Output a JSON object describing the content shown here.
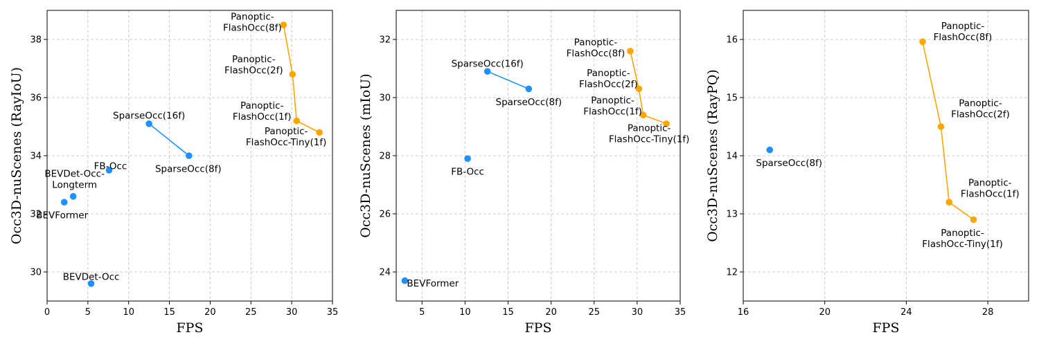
{
  "colors": {
    "blue": "#1e90ff",
    "orange": "#ffa500",
    "grid": "#cccccc"
  },
  "chart_data": [
    {
      "type": "scatter",
      "xlabel": "FPS",
      "ylabel": "Occ3D-nuScenes (RayIoU)",
      "xlim": [
        0,
        35
      ],
      "ylim": [
        29,
        39
      ],
      "xticks": [
        0,
        5,
        10,
        15,
        20,
        25,
        30,
        35
      ],
      "yticks": [
        30,
        32,
        34,
        36,
        38
      ],
      "grid": true,
      "points": [
        {
          "x": 5.4,
          "y": 29.6,
          "group": "blue",
          "label": [
            "BEVDet-Occ"
          ],
          "dx": 0,
          "dy": -10,
          "anchor": "middle"
        },
        {
          "x": 2.1,
          "y": 32.4,
          "group": "blue",
          "label": [
            "BEVFormer"
          ],
          "dx": -3,
          "dy": 19,
          "anchor": "middle"
        },
        {
          "x": 3.2,
          "y": 32.6,
          "group": "blue",
          "label": [
            "BEVDet-Occ-",
            "Longterm"
          ],
          "dx": 2,
          "dy": -25,
          "anchor": "middle"
        },
        {
          "x": 7.6,
          "y": 33.5,
          "group": "blue",
          "label": [
            "FB-Occ"
          ],
          "dx": 2,
          "dy": -6,
          "anchor": "middle"
        },
        {
          "x": 12.5,
          "y": 35.1,
          "group": "blue",
          "label": [
            "SparseOcc(16f)"
          ],
          "dx": 0,
          "dy": -12,
          "anchor": "middle"
        },
        {
          "x": 17.4,
          "y": 34.0,
          "group": "blue",
          "label": [
            "SparseOcc(8f)"
          ],
          "dx": -1,
          "dy": 19,
          "anchor": "middle"
        },
        {
          "x": 29.0,
          "y": 38.5,
          "group": "orange",
          "label": [
            "Panoptic-",
            "FlashOcc(8f)"
          ],
          "dx": -45,
          "dy": -4,
          "anchor": "middle"
        },
        {
          "x": 30.1,
          "y": 36.8,
          "group": "orange",
          "label": [
            "Panoptic-",
            "FlashOcc(2f)"
          ],
          "dx": -56,
          "dy": -14,
          "anchor": "middle"
        },
        {
          "x": 30.6,
          "y": 35.2,
          "group": "orange",
          "label": [
            "Panoptic-",
            "FlashOcc(1f)"
          ],
          "dx": -50,
          "dy": -14,
          "anchor": "middle"
        },
        {
          "x": 33.4,
          "y": 34.8,
          "group": "orange",
          "label": [
            "Panoptic-",
            "FlashOcc-Tiny(1f)"
          ],
          "dx": -48,
          "dy": 6,
          "anchor": "middle"
        }
      ],
      "lines": [
        {
          "group": "blue",
          "x": [
            12.5,
            17.4
          ],
          "y": [
            35.1,
            34.0
          ]
        },
        {
          "group": "orange",
          "x": [
            29.0,
            30.1,
            30.6,
            33.4
          ],
          "y": [
            38.5,
            36.8,
            35.2,
            34.8
          ]
        }
      ]
    },
    {
      "type": "scatter",
      "xlabel": "FPS",
      "ylabel": "Occ3D-nuScenes (mIoU)",
      "xlim": [
        2,
        35
      ],
      "ylim": [
        23,
        33
      ],
      "xticks": [
        5,
        10,
        15,
        20,
        25,
        30,
        35
      ],
      "yticks": [
        24,
        26,
        28,
        30,
        32
      ],
      "grid": true,
      "points": [
        {
          "x": 3.0,
          "y": 23.7,
          "group": "blue",
          "label": [
            "BEVFormer"
          ],
          "dx": 3,
          "dy": 4,
          "anchor": "start"
        },
        {
          "x": 10.3,
          "y": 27.9,
          "group": "blue",
          "label": [
            "FB-Occ"
          ],
          "dx": 0,
          "dy": 19,
          "anchor": "middle"
        },
        {
          "x": 12.6,
          "y": 30.9,
          "group": "blue",
          "label": [
            "SparseOcc(16f)"
          ],
          "dx": 0,
          "dy": -11,
          "anchor": "middle"
        },
        {
          "x": 17.4,
          "y": 30.3,
          "group": "blue",
          "label": [
            "SparseOcc(8f)"
          ],
          "dx": 0,
          "dy": 19,
          "anchor": "middle"
        },
        {
          "x": 29.2,
          "y": 31.6,
          "group": "orange",
          "label": [
            "Panoptic-",
            "FlashOcc(8f)"
          ],
          "dx": -50,
          "dy": -5,
          "anchor": "middle"
        },
        {
          "x": 30.2,
          "y": 30.3,
          "group": "orange",
          "label": [
            "Panoptic-",
            "FlashOcc(2f)"
          ],
          "dx": -44,
          "dy": -15,
          "anchor": "middle"
        },
        {
          "x": 30.7,
          "y": 29.4,
          "group": "orange",
          "label": [
            "Panoptic-",
            "FlashOcc(1f)"
          ],
          "dx": -44,
          "dy": -13,
          "anchor": "middle"
        },
        {
          "x": 33.4,
          "y": 29.1,
          "group": "orange",
          "label": [
            "Panoptic-",
            "FlashOcc-Tiny(1f)"
          ],
          "dx": -25,
          "dy": 14,
          "anchor": "middle"
        }
      ],
      "lines": [
        {
          "group": "blue",
          "x": [
            12.6,
            17.4
          ],
          "y": [
            30.9,
            30.3
          ]
        },
        {
          "group": "orange",
          "x": [
            29.2,
            30.2,
            30.7,
            33.4
          ],
          "y": [
            31.6,
            30.3,
            29.4,
            29.1
          ]
        }
      ]
    },
    {
      "type": "scatter",
      "xlabel": "FPS",
      "ylabel": "Occ3D-nuScenes (RayPQ)",
      "xlim": [
        16,
        30
      ],
      "ylim": [
        11.5,
        16.5
      ],
      "xticks": [
        16,
        20,
        24,
        28
      ],
      "yticks": [
        12,
        13,
        14,
        15,
        16
      ],
      "grid": true,
      "points": [
        {
          "x": 17.3,
          "y": 14.1,
          "group": "blue",
          "label": [
            "SparseOcc(8f)"
          ],
          "dx": 28,
          "dy": 19,
          "anchor": "middle"
        },
        {
          "x": 24.8,
          "y": 15.96,
          "group": "orange",
          "label": [
            "Panoptic-",
            "FlashOcc(8f)"
          ],
          "dx": 58,
          "dy": -15,
          "anchor": "middle"
        },
        {
          "x": 25.7,
          "y": 14.5,
          "group": "orange",
          "label": [
            "Panoptic-",
            "FlashOcc(2f)"
          ],
          "dx": 57,
          "dy": -26,
          "anchor": "middle"
        },
        {
          "x": 26.1,
          "y": 13.2,
          "group": "orange",
          "label": [
            "Panoptic-",
            "FlashOcc(1f)"
          ],
          "dx": 59,
          "dy": -20,
          "anchor": "middle"
        },
        {
          "x": 27.3,
          "y": 12.9,
          "group": "orange",
          "label": [
            "Panoptic-",
            "FlashOcc-Tiny(1f)"
          ],
          "dx": -16,
          "dy": 27,
          "anchor": "middle"
        }
      ],
      "lines": [
        {
          "group": "orange",
          "x": [
            24.8,
            25.7,
            26.1,
            27.3
          ],
          "y": [
            15.96,
            14.5,
            13.2,
            12.9
          ]
        }
      ]
    }
  ]
}
